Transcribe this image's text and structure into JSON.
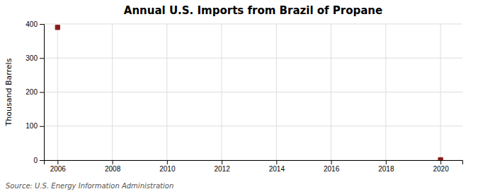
{
  "chart_data": {
    "type": "scatter",
    "title": "Annual U.S. Imports from Brazil of Propane",
    "ylabel": "Thousand Barrels",
    "annotations": [
      "Source: U.S. Energy Information Administration"
    ],
    "x": [
      2006,
      2020
    ],
    "values": [
      390,
      1
    ],
    "color": "#8B1A1A",
    "marker": "square",
    "xlim": [
      2005.5,
      2020.8
    ],
    "xticks": [
      2006,
      2008,
      2010,
      2012,
      2014,
      2016,
      2018,
      2020
    ],
    "ylim": [
      0,
      400
    ],
    "yticks": [
      0,
      100,
      200,
      300,
      400
    ],
    "grid": true
  }
}
